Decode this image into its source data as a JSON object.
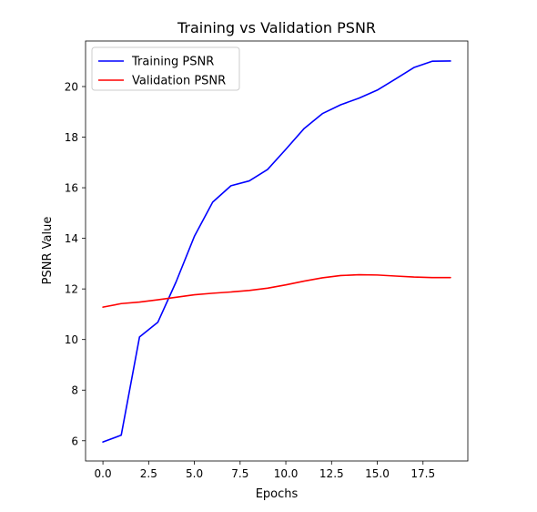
{
  "chart_data": {
    "type": "line",
    "title": "Training vs Validation PSNR",
    "xlabel": "Epochs",
    "ylabel": "PSNR Value",
    "xlim": [
      -0.95,
      19.95
    ],
    "ylim": [
      5.2,
      21.8
    ],
    "xticks": [
      0.0,
      2.5,
      5.0,
      7.5,
      10.0,
      12.5,
      15.0,
      17.5
    ],
    "xtick_labels": [
      "0.0",
      "2.5",
      "5.0",
      "7.5",
      "10.0",
      "12.5",
      "15.0",
      "17.5"
    ],
    "yticks": [
      6,
      8,
      10,
      12,
      14,
      16,
      18,
      20
    ],
    "ytick_labels": [
      "6",
      "8",
      "10",
      "12",
      "14",
      "16",
      "18",
      "20"
    ],
    "grid": false,
    "legend_position": "top-left",
    "x": [
      0,
      1,
      2,
      3,
      4,
      5,
      6,
      7,
      8,
      9,
      10,
      11,
      12,
      13,
      14,
      15,
      16,
      17,
      18,
      19
    ],
    "series": [
      {
        "name": "Training PSNR",
        "color": "#0000ff",
        "values": [
          5.95,
          6.22,
          10.1,
          10.68,
          12.28,
          14.08,
          15.43,
          16.08,
          16.27,
          16.72,
          17.52,
          18.34,
          18.93,
          19.28,
          19.54,
          19.86,
          20.3,
          20.75,
          21.0,
          21.01
        ]
      },
      {
        "name": "Validation PSNR",
        "color": "#ff0000",
        "values": [
          11.28,
          11.42,
          11.48,
          11.57,
          11.67,
          11.77,
          11.83,
          11.88,
          11.94,
          12.03,
          12.16,
          12.31,
          12.44,
          12.53,
          12.56,
          12.55,
          12.51,
          12.47,
          12.45,
          12.45
        ]
      }
    ]
  }
}
